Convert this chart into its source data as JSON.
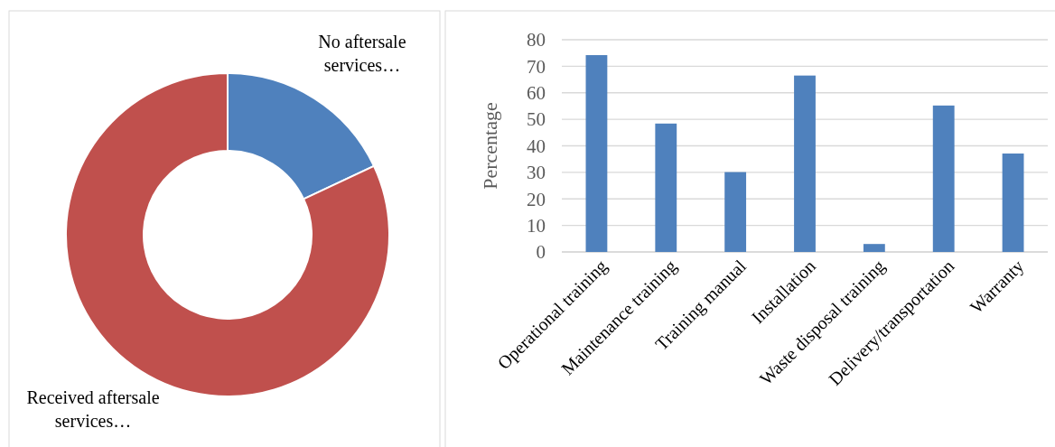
{
  "chart_data": [
    {
      "type": "donut",
      "categories": [
        "No aftersale services…",
        "Received aftersale services…"
      ],
      "values": [
        18,
        82
      ],
      "colors": [
        "#4f81bd",
        "#c0504d"
      ]
    },
    {
      "type": "bar",
      "ylabel": "Percentage",
      "categories": [
        "Operational training",
        "Maintenance training",
        "Training manual",
        "Installation",
        "Waste disposal training",
        "Delivery/transportation",
        "Warranty"
      ],
      "values": [
        74.2,
        48.4,
        30.1,
        66.5,
        3.0,
        55.2,
        37.1
      ],
      "color": "#4f81bd",
      "ylim": [
        0,
        80
      ],
      "yticks": [
        0,
        10,
        20,
        30,
        40,
        50,
        60,
        70,
        80
      ],
      "grid": "y"
    }
  ]
}
